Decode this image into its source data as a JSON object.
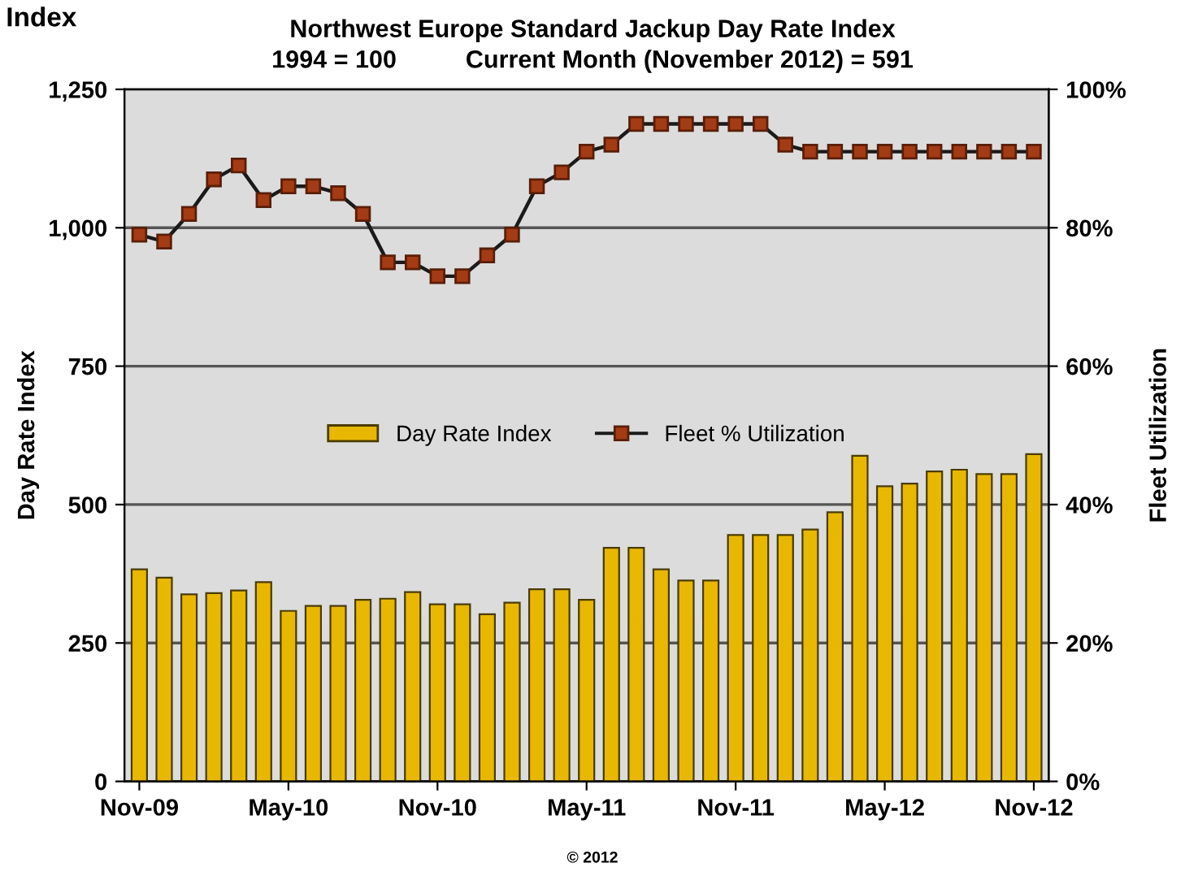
{
  "chart_data": {
    "type": "bar",
    "title": "Northwest Europe Standard Jackup Day Rate Index",
    "subtitle": "1994 = 100          Current Month (November 2012) = 591",
    "ylabel": "Day Rate Index",
    "y2label": "Fleet Utilization",
    "annotations": [
      "Index",
      "© 2012"
    ],
    "categories": [
      "Nov-09",
      null,
      null,
      null,
      null,
      null,
      "May-10",
      null,
      null,
      null,
      null,
      null,
      "Nov-10",
      null,
      null,
      null,
      null,
      null,
      "May-11",
      null,
      null,
      null,
      null,
      null,
      "Nov-11",
      null,
      null,
      null,
      null,
      null,
      "May-12",
      null,
      null,
      null,
      null,
      null,
      "Nov-12"
    ],
    "series": [
      {
        "name": "Day Rate Index",
        "color": "#e8b800",
        "values": [
          383,
          368,
          338,
          340,
          345,
          360,
          308,
          317,
          317,
          328,
          330,
          342,
          320,
          320,
          302,
          323,
          347,
          347,
          328,
          422,
          422,
          383,
          363,
          363,
          445,
          445,
          445,
          455,
          486,
          588,
          533,
          538,
          560,
          563,
          555,
          555,
          591
        ]
      },
      {
        "name": "Fleet % Utilization",
        "type": "line",
        "axis": "y2",
        "color": "#a33b14",
        "marker": "square",
        "values": [
          79,
          78,
          82,
          87,
          89,
          84,
          86,
          86,
          85,
          82,
          75,
          75,
          73,
          73,
          76,
          79,
          86,
          88,
          91,
          92,
          95,
          95,
          95,
          95,
          95,
          95,
          92,
          91,
          91,
          91,
          91,
          91,
          91,
          91,
          91,
          91,
          91
        ]
      }
    ],
    "ylim": [
      0,
      1250
    ],
    "yticks": [
      {
        "value": 0,
        "label": "0"
      },
      {
        "value": 250,
        "label": "250"
      },
      {
        "value": 500,
        "label": "500"
      },
      {
        "value": 750,
        "label": "750"
      },
      {
        "value": 1000,
        "label": "1,000"
      },
      {
        "value": 1250,
        "label": "1,250"
      }
    ],
    "y2lim": [
      0,
      100
    ],
    "y2ticks": [
      {
        "value": 0,
        "label": "0%"
      },
      {
        "value": 20,
        "label": "20%"
      },
      {
        "value": 40,
        "label": "40%"
      },
      {
        "value": 60,
        "label": "60%"
      },
      {
        "value": 80,
        "label": "80%"
      },
      {
        "value": 100,
        "label": "100%"
      }
    ],
    "grid": "y",
    "legend": "center"
  }
}
